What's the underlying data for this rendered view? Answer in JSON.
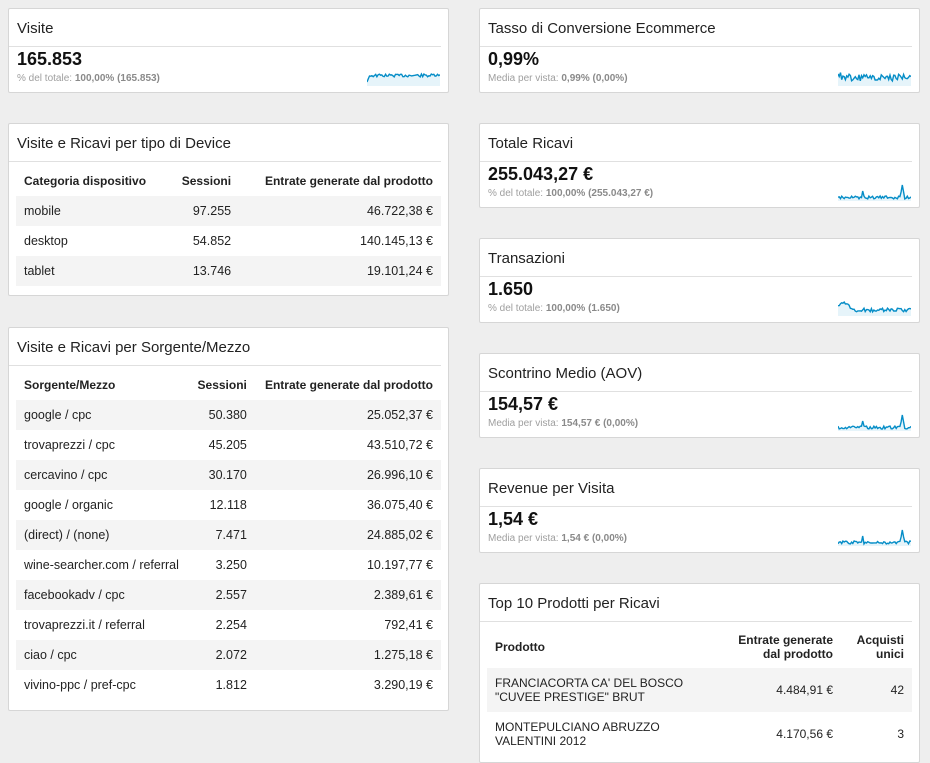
{
  "metrics": {
    "visite": {
      "title": "Visite",
      "value": "165.853",
      "sub_label": "% del totale:",
      "sub_value": "100,00% (165.853)"
    },
    "conversione": {
      "title": "Tasso di Conversione Ecommerce",
      "value": "0,99%",
      "sub_label": "Media per vista:",
      "sub_value": "0,99% (0,00%)"
    },
    "ricavi": {
      "title": "Totale Ricavi",
      "value": "255.043,27 €",
      "sub_label": "% del totale:",
      "sub_value": "100,00% (255.043,27 €)"
    },
    "transazioni": {
      "title": "Transazioni",
      "value": "1.650",
      "sub_label": "% del totale:",
      "sub_value": "100,00% (1.650)"
    },
    "aov": {
      "title": "Scontrino Medio (AOV)",
      "value": "154,57 €",
      "sub_label": "Media per vista:",
      "sub_value": "154,57 € (0,00%)"
    },
    "rpv": {
      "title": "Revenue per Visita",
      "value": "1,54 €",
      "sub_label": "Media per vista:",
      "sub_value": "1,54 € (0,00%)"
    }
  },
  "device_table": {
    "title": "Visite e Ricavi per tipo di Device",
    "headers": [
      "Categoria dispositivo",
      "Sessioni",
      "Entrate generate dal prodotto"
    ],
    "rows": [
      [
        "mobile",
        "97.255",
        "46.722,38 €"
      ],
      [
        "desktop",
        "54.852",
        "140.145,13 €"
      ],
      [
        "tablet",
        "13.746",
        "19.101,24 €"
      ]
    ]
  },
  "source_table": {
    "title": "Visite e Ricavi per Sorgente/Mezzo",
    "headers": [
      "Sorgente/Mezzo",
      "Sessioni",
      "Entrate generate dal prodotto"
    ],
    "rows": [
      [
        "google / cpc",
        "50.380",
        "25.052,37 €"
      ],
      [
        "trovaprezzi / cpc",
        "45.205",
        "43.510,72 €"
      ],
      [
        "cercavino / cpc",
        "30.170",
        "26.996,10 €"
      ],
      [
        "google / organic",
        "12.118",
        "36.075,40 €"
      ],
      [
        "(direct) / (none)",
        "7.471",
        "24.885,02 €"
      ],
      [
        "wine-searcher.com / referral",
        "3.250",
        "10.197,77 €"
      ],
      [
        "facebookadv / cpc",
        "2.557",
        "2.389,61 €"
      ],
      [
        "trovaprezzi.it / referral",
        "2.254",
        "792,41 €"
      ],
      [
        "ciao / cpc",
        "2.072",
        "1.275,18 €"
      ],
      [
        "vivino-ppc / pref-cpc",
        "1.812",
        "3.290,19 €"
      ]
    ]
  },
  "top_products": {
    "title": "Top 10 Prodotti per Ricavi",
    "headers": [
      "Prodotto",
      "Entrate generate dal prodotto",
      "Acquisti unici"
    ],
    "rows": [
      [
        "FRANCIACORTA CA' DEL BOSCO \"CUVEE PRESTIGE\" BRUT",
        "4.484,91 €",
        "42"
      ],
      [
        "MONTEPULCIANO ABRUZZO VALENTINI 2012",
        "4.170,56 €",
        "3"
      ]
    ]
  },
  "colors": {
    "sparkline": "#058dc7",
    "sparkfill": "#e6f4fa"
  }
}
